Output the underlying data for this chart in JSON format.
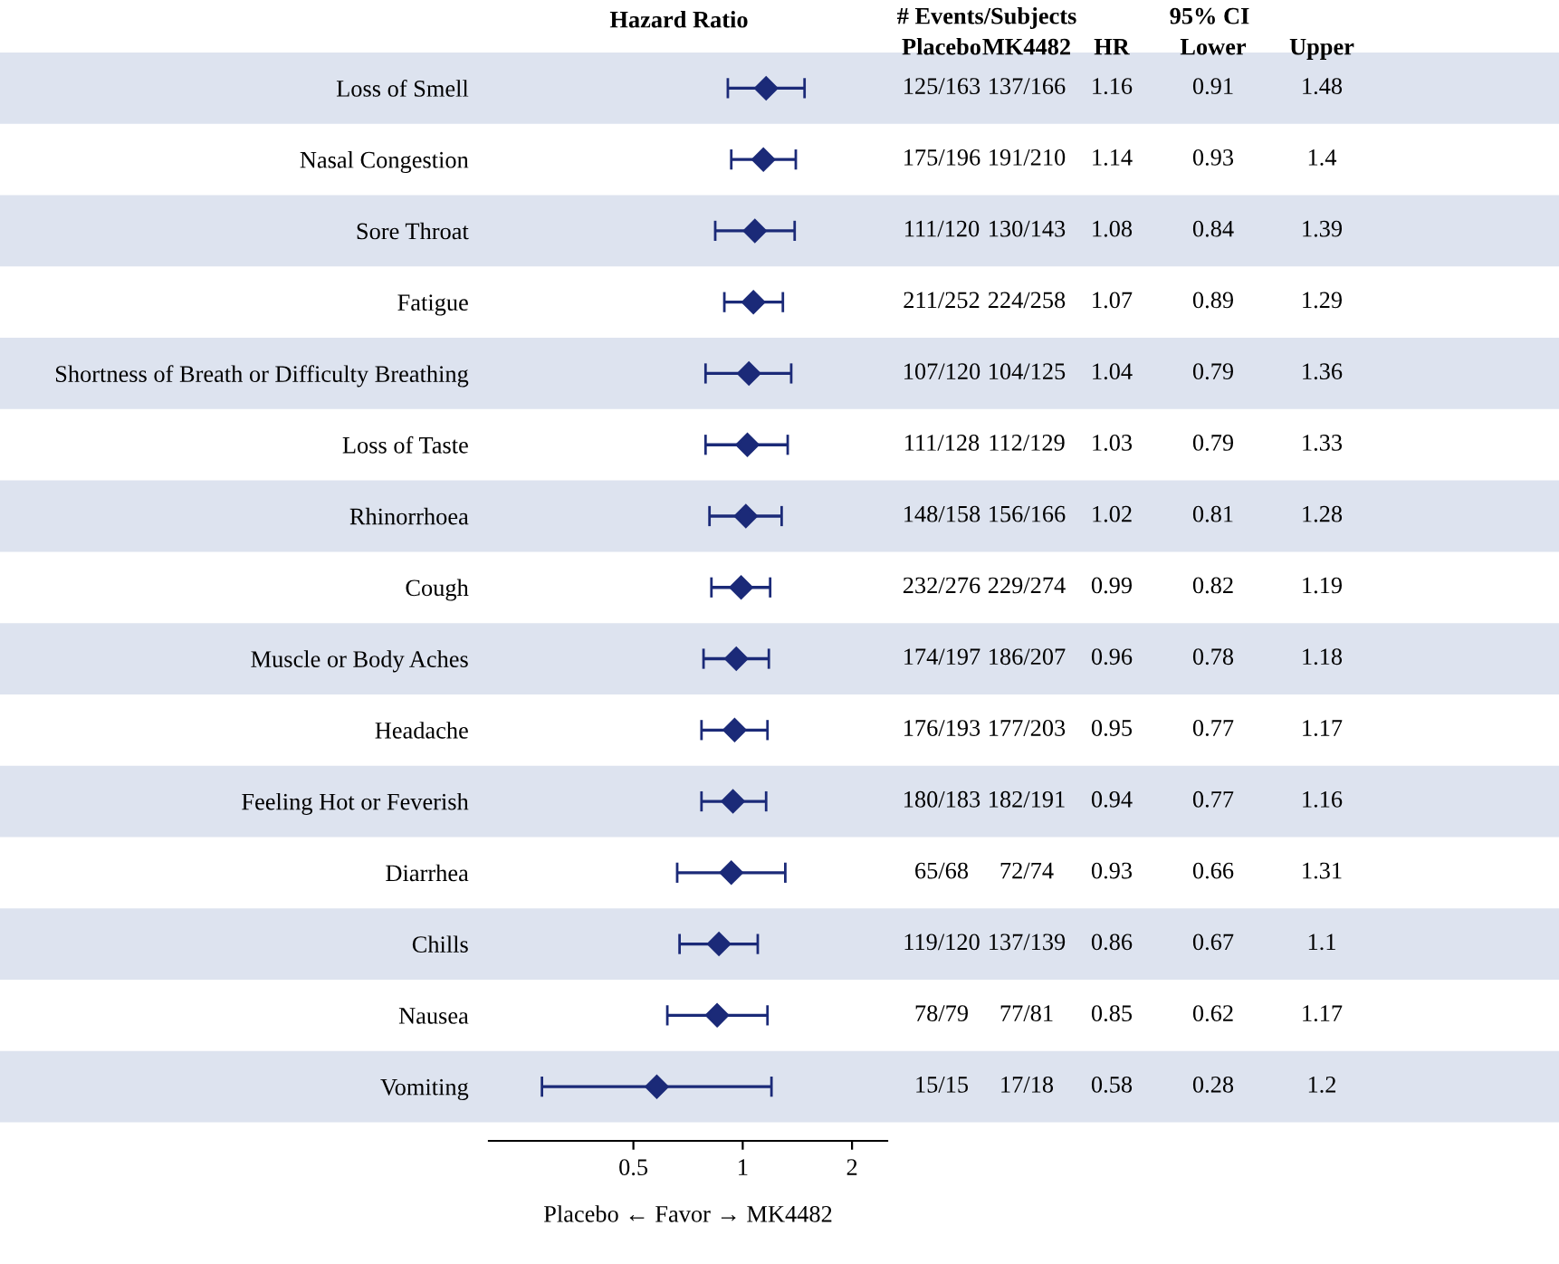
{
  "chart_data": {
    "type": "scatter",
    "orientation": "horizontal",
    "title": "Hazard Ratio",
    "xlabel": "Placebo ← Favor → MK4482",
    "categories": [
      "Loss of Smell",
      "Nasal Congestion",
      "Sore Throat",
      "Fatigue",
      "Shortness of Breath or Difficulty Breathing",
      "Loss of Taste",
      "Rhinorrhoea",
      "Cough",
      "Muscle or Body Aches",
      "Headache",
      "Feeling Hot or Feverish",
      "Diarrhea",
      "Chills",
      "Nausea",
      "Vomiting"
    ],
    "series": [
      {
        "color": "#1b2a78",
        "values": [
          1.16,
          1.14,
          1.08,
          1.07,
          1.04,
          1.03,
          1.02,
          0.99,
          0.96,
          0.95,
          0.94,
          0.93,
          0.86,
          0.85,
          0.58
        ],
        "errors": [
          [
            0.91,
            1.48
          ],
          [
            0.93,
            1.4
          ],
          [
            0.84,
            1.39
          ],
          [
            0.89,
            1.29
          ],
          [
            0.79,
            1.36
          ],
          [
            0.79,
            1.33
          ],
          [
            0.81,
            1.28
          ],
          [
            0.82,
            1.19
          ],
          [
            0.78,
            1.18
          ],
          [
            0.77,
            1.17
          ],
          [
            0.77,
            1.16
          ],
          [
            0.66,
            1.31
          ],
          [
            0.67,
            1.1
          ],
          [
            0.62,
            1.17
          ],
          [
            0.28,
            1.2
          ]
        ]
      }
    ],
    "marker": "diamond",
    "log": "x",
    "xlim": [
      0.2,
      2.5
    ],
    "xticks": [
      0.5,
      1,
      2
    ],
    "grid": false,
    "legend": false,
    "data_labels": true,
    "bands": [
      {
        "axis": "y",
        "from": "Loss of Smell",
        "to": "Loss of Smell",
        "color": "#dde3ef"
      },
      {
        "axis": "y",
        "from": "Sore Throat",
        "to": "Sore Throat",
        "color": "#dde3ef"
      },
      {
        "axis": "y",
        "from": "Shortness of Breath or Difficulty Breathing",
        "to": "Shortness of Breath or Difficulty Breathing",
        "color": "#dde3ef"
      },
      {
        "axis": "y",
        "from": "Rhinorrhoea",
        "to": "Rhinorrhoea",
        "color": "#dde3ef"
      },
      {
        "axis": "y",
        "from": "Muscle or Body Aches",
        "to": "Muscle or Body Aches",
        "color": "#dde3ef"
      },
      {
        "axis": "y",
        "from": "Feeling Hot or Feverish",
        "to": "Feeling Hot or Feverish",
        "color": "#dde3ef"
      },
      {
        "axis": "y",
        "from": "Chills",
        "to": "Chills",
        "color": "#dde3ef"
      },
      {
        "axis": "y",
        "from": "Vomiting",
        "to": "Vomiting",
        "color": "#dde3ef"
      }
    ],
    "annotations": [
      "# Events/Subjects",
      "Placebo",
      "MK4482",
      "HR",
      "95% CI",
      "Lower",
      "Upper",
      "125/163",
      "137/166",
      "0.91",
      "1.48",
      "175/196",
      "191/210",
      "0.93",
      "1.4",
      "111/120",
      "130/143",
      "0.84",
      "1.39",
      "211/252",
      "224/258",
      "0.89",
      "1.29",
      "107/120",
      "104/125",
      "0.79",
      "1.36",
      "111/128",
      "112/129",
      "0.79",
      "1.33",
      "148/158",
      "156/166",
      "0.81",
      "1.28",
      "232/276",
      "229/274",
      "0.82",
      "1.19",
      "174/197",
      "186/207",
      "0.78",
      "1.18",
      "176/193",
      "177/203",
      "0.77",
      "1.17",
      "180/183",
      "182/191",
      "0.77",
      "1.16",
      "65/68",
      "72/74",
      "0.66",
      "1.31",
      "119/120",
      "137/139",
      "0.67",
      "1.1",
      "78/79",
      "77/81",
      "0.62",
      "1.17",
      "15/15",
      "17/18",
      "0.28",
      "1.2"
    ]
  }
}
